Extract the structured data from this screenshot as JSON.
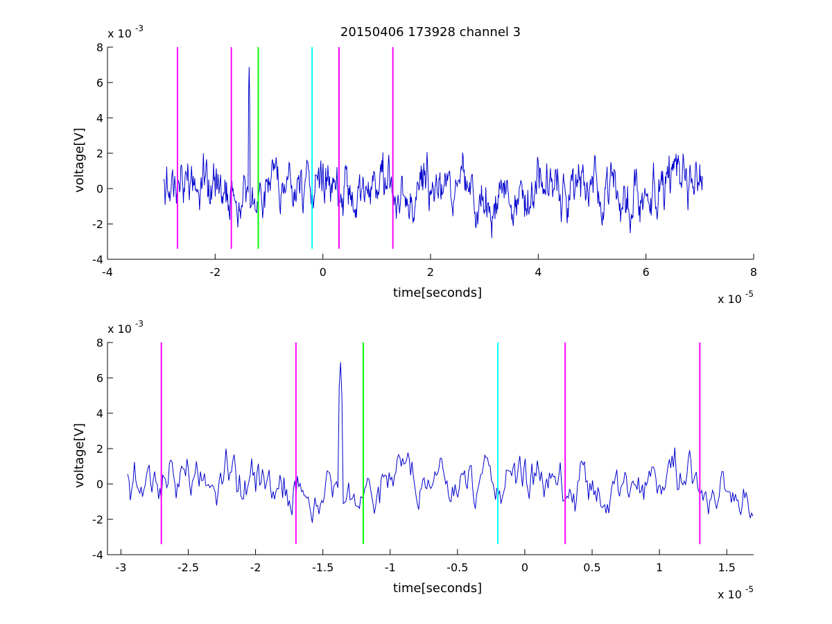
{
  "chart_data": [
    {
      "type": "line",
      "title": "20150406 173928 channel 3",
      "xlabel": "time[seconds]",
      "ylabel": "voltage[V]",
      "x_multiplier": "x 10",
      "x_exponent": "-5",
      "y_multiplier": "x 10",
      "y_exponent": "-3",
      "xlim": [
        -4,
        8
      ],
      "ylim": [
        -4,
        8
      ],
      "x_ticks": [
        "-4",
        "-2",
        "0",
        "2",
        "4",
        "6",
        "8"
      ],
      "y_ticks": [
        "-4",
        "-2",
        "0",
        "2",
        "4",
        "6",
        "8"
      ],
      "markers": [
        {
          "x": -2.7,
          "color": "#ff00ff"
        },
        {
          "x": -1.7,
          "color": "#ff00ff"
        },
        {
          "x": -1.2,
          "color": "#00ff00"
        },
        {
          "x": -0.2,
          "color": "#00ffff"
        },
        {
          "x": 0.3,
          "color": "#ff00ff"
        },
        {
          "x": 1.3,
          "color": "#ff00ff"
        }
      ],
      "marker_range": [
        -3.4,
        8
      ],
      "series": [
        {
          "color": "#0000cc",
          "x_range": [
            -2.95,
            7.05
          ]
        }
      ]
    },
    {
      "type": "line",
      "xlabel": "time[seconds]",
      "ylabel": "voltage[V]",
      "x_multiplier": "x 10",
      "x_exponent": "-5",
      "y_multiplier": "x 10",
      "y_exponent": "-3",
      "xlim": [
        -3.1,
        1.7
      ],
      "ylim": [
        -4,
        8
      ],
      "x_ticks": [
        "-3",
        "-2.5",
        "-2",
        "-1.5",
        "-1",
        "-0.5",
        "0",
        "0.5",
        "1",
        "1.5"
      ],
      "y_ticks": [
        "-4",
        "-2",
        "0",
        "2",
        "4",
        "6",
        "8"
      ],
      "markers": [
        {
          "x": -2.7,
          "color": "#ff00ff"
        },
        {
          "x": -1.7,
          "color": "#ff00ff"
        },
        {
          "x": -1.2,
          "color": "#00ff00"
        },
        {
          "x": -0.2,
          "color": "#00ffff"
        },
        {
          "x": 0.3,
          "color": "#ff00ff"
        },
        {
          "x": 1.3,
          "color": "#ff00ff"
        }
      ],
      "marker_range": [
        -3.4,
        8
      ],
      "series": [
        {
          "color": "#0000cc",
          "x_range": [
            -2.95,
            1.7
          ]
        }
      ]
    }
  ]
}
